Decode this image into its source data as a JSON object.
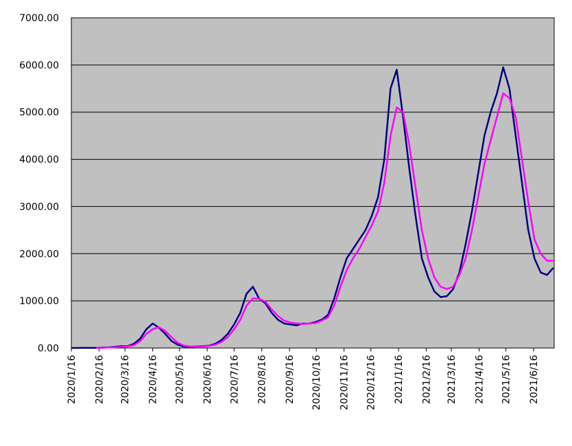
{
  "chart_data": {
    "type": "line",
    "x": [
      "2020/1/16",
      "2020/1/23",
      "2020/1/30",
      "2020/2/6",
      "2020/2/13",
      "2020/2/20",
      "2020/2/27",
      "2020/3/5",
      "2020/3/12",
      "2020/3/19",
      "2020/3/26",
      "2020/4/2",
      "2020/4/9",
      "2020/4/16",
      "2020/4/23",
      "2020/4/30",
      "2020/5/7",
      "2020/5/14",
      "2020/5/21",
      "2020/5/28",
      "2020/6/4",
      "2020/6/11",
      "2020/6/18",
      "2020/6/25",
      "2020/7/2",
      "2020/7/9",
      "2020/7/16",
      "2020/7/23",
      "2020/7/30",
      "2020/8/6",
      "2020/8/13",
      "2020/8/20",
      "2020/8/27",
      "2020/9/3",
      "2020/9/10",
      "2020/9/17",
      "2020/9/24",
      "2020/10/1",
      "2020/10/8",
      "2020/10/15",
      "2020/10/22",
      "2020/10/29",
      "2020/11/5",
      "2020/11/12",
      "2020/11/19",
      "2020/11/26",
      "2020/12/3",
      "2020/12/10",
      "2020/12/17",
      "2020/12/24",
      "2020/12/31",
      "2021/1/7",
      "2021/1/14",
      "2021/1/21",
      "2021/1/28",
      "2021/2/4",
      "2021/2/11",
      "2021/2/18",
      "2021/2/25",
      "2021/3/4",
      "2021/3/11",
      "2021/3/18",
      "2021/3/25",
      "2021/4/1",
      "2021/4/8",
      "2021/4/15",
      "2021/4/22",
      "2021/4/29",
      "2021/5/6",
      "2021/5/13",
      "2021/5/20",
      "2021/5/27",
      "2021/6/3",
      "2021/6/10",
      "2021/6/17",
      "2021/6/24",
      "2021/7/1",
      "2021/7/8"
    ],
    "series": [
      {
        "color": "#000080",
        "values": [
          0,
          2,
          3,
          3,
          5,
          10,
          15,
          25,
          40,
          40,
          90,
          200,
          400,
          520,
          430,
          300,
          150,
          70,
          30,
          20,
          35,
          40,
          50,
          90,
          170,
          300,
          500,
          750,
          1150,
          1300,
          1050,
          950,
          750,
          600,
          520,
          500,
          480,
          520,
          520,
          550,
          600,
          700,
          1050,
          1500,
          1900,
          2100,
          2300,
          2500,
          2800,
          3200,
          4000,
          5500,
          5900,
          4900,
          3800,
          2800,
          1900,
          1500,
          1200,
          1080,
          1100,
          1250,
          1600,
          2200,
          2900,
          3700,
          4500,
          5000,
          5400,
          5950,
          5500,
          4500,
          3500,
          2500,
          1900,
          1600,
          1550,
          1700
        ]
      },
      {
        "color": "#ff00ff",
        "values": [
          null,
          null,
          null,
          null,
          3,
          5,
          10,
          15,
          25,
          35,
          60,
          150,
          300,
          400,
          440,
          360,
          230,
          110,
          50,
          35,
          30,
          35,
          45,
          70,
          130,
          230,
          400,
          600,
          900,
          1050,
          1050,
          980,
          820,
          680,
          580,
          540,
          520,
          510,
          520,
          530,
          580,
          650,
          900,
          1300,
          1650,
          1900,
          2100,
          2350,
          2600,
          2900,
          3500,
          4500,
          5100,
          5000,
          4300,
          3400,
          2500,
          1900,
          1500,
          1300,
          1250,
          1300,
          1550,
          1900,
          2500,
          3200,
          3900,
          4400,
          4900,
          5400,
          5300,
          4900,
          4000,
          3100,
          2300,
          2000,
          1850,
          1850
        ]
      }
    ],
    "xlim": [
      "2020/1/16",
      "2021/7/9"
    ],
    "xticks": [
      "2020/1/16",
      "2020/2/16",
      "2020/3/16",
      "2020/4/16",
      "2020/5/16",
      "2020/6/16",
      "2020/7/16",
      "2020/8/16",
      "2020/9/16",
      "2020/10/16",
      "2020/11/16",
      "2020/12/16",
      "2021/1/16",
      "2021/2/16",
      "2021/3/16",
      "2021/4/16",
      "2021/5/16",
      "2021/6/16"
    ],
    "ylim": [
      0,
      7000
    ],
    "yticks": [
      {
        "value": 0,
        "label": "0.00"
      },
      {
        "value": 1000,
        "label": "1000.00"
      },
      {
        "value": 2000,
        "label": "2000.00"
      },
      {
        "value": 3000,
        "label": "3000.00"
      },
      {
        "value": 4000,
        "label": "4000.00"
      },
      {
        "value": 5000,
        "label": "5000.00"
      },
      {
        "value": 6000,
        "label": "6000.00"
      },
      {
        "value": 7000,
        "label": "7000.00"
      }
    ],
    "grid": true
  }
}
